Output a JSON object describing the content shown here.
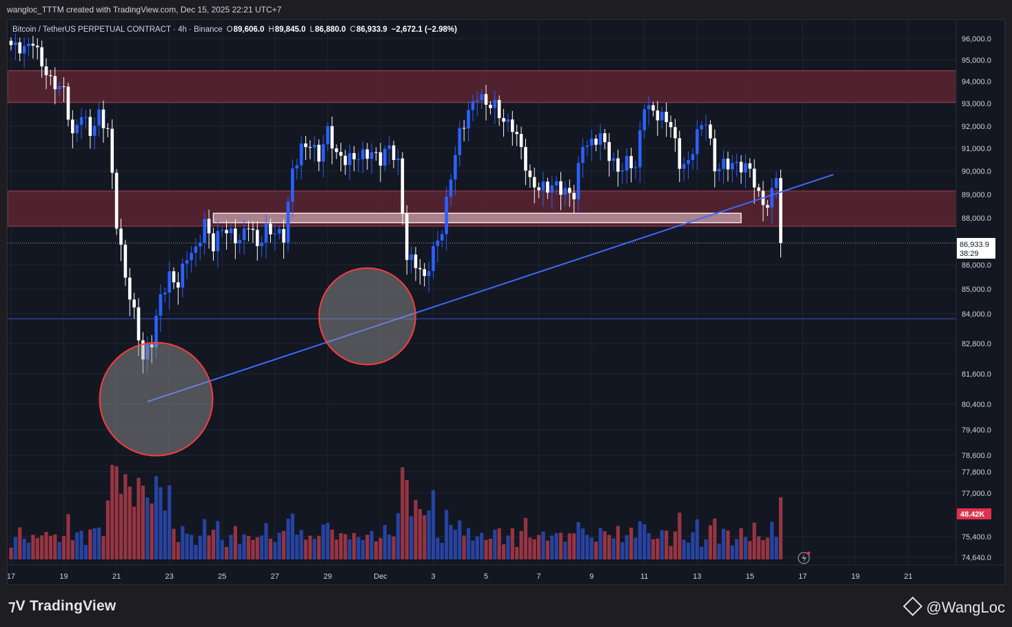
{
  "page": {
    "header_text": "wangloc_TTTM created with TradingView.com, Dec 15, 2025 22:21 UTC+7",
    "brand_logo": "TradingView",
    "watermark": "@WangLoc"
  },
  "legend": {
    "symbol": "Bitcoin / TetherUS PERPETUAL CONTRACT · 4h · Binance",
    "open_label": "O",
    "open": "89,606.0",
    "high_label": "H",
    "high": "89,845.0",
    "low_label": "L",
    "low": "86,880.0",
    "close_label": "C",
    "close": "86,933.9",
    "change": "−2,672.1 (−2.98%)"
  },
  "price_tag": {
    "price": "86,933.9",
    "countdown": "38:29"
  },
  "volume_tag": "48.42K",
  "colors": {
    "background": "#131722",
    "bull": "#2962ff",
    "bear": "#ffffff",
    "vol_up": "#2c4bb8",
    "vol_down": "#b03a48",
    "zone": "#5c2533",
    "zone_border": "#a8404f",
    "trendline": "#3d6bff",
    "circle_border": "#ff3b3b"
  },
  "chart_data": {
    "type": "candlestick",
    "timeframe": "4h",
    "y_ticks": [
      "96,000.0",
      "95,000.0",
      "94,000.0",
      "93,000.0",
      "92,000.0",
      "91,000.0",
      "90,000.0",
      "89,000.0",
      "88,000.0",
      "86,000.0",
      "85,000.0",
      "84,000.0",
      "82,800.0",
      "81,600.0",
      "80,400.0",
      "79,400.0",
      "78,600.0",
      "77,800.0",
      "77,000.0",
      "75,400.0",
      "74,640.0"
    ],
    "y_tick_values": [
      96000,
      95000,
      94000,
      93000,
      92000,
      91000,
      90000,
      89000,
      88000,
      86000,
      85000,
      84000,
      82800,
      81600,
      80400,
      79400,
      78600,
      77800,
      77000,
      75400,
      74640
    ],
    "x_ticks": [
      {
        "label": "17",
        "index": 0
      },
      {
        "label": "19",
        "index": 12
      },
      {
        "label": "21",
        "index": 24
      },
      {
        "label": "23",
        "index": 36
      },
      {
        "label": "25",
        "index": 48
      },
      {
        "label": "27",
        "index": 60
      },
      {
        "label": "29",
        "index": 72
      },
      {
        "label": "Dec",
        "index": 84
      },
      {
        "label": "3",
        "index": 96
      },
      {
        "label": "5",
        "index": 108
      },
      {
        "label": "7",
        "index": 120
      },
      {
        "label": "9",
        "index": 132
      },
      {
        "label": "11",
        "index": 144
      },
      {
        "label": "13",
        "index": 156
      },
      {
        "label": "15",
        "index": 168
      },
      {
        "label": "17",
        "index": 180
      },
      {
        "label": "19",
        "index": 192
      },
      {
        "label": "21",
        "index": 204
      }
    ],
    "anchors": [
      [
        0,
        95700
      ],
      [
        3,
        95500
      ],
      [
        5,
        95900
      ],
      [
        7,
        94800
      ],
      [
        9,
        94000
      ],
      [
        12,
        93600
      ],
      [
        14,
        91500
      ],
      [
        16,
        92600
      ],
      [
        18,
        91700
      ],
      [
        20,
        92500
      ],
      [
        22,
        91800
      ],
      [
        24,
        87800
      ],
      [
        26,
        85500
      ],
      [
        28,
        84000
      ],
      [
        30,
        82200
      ],
      [
        32,
        82900
      ],
      [
        34,
        84700
      ],
      [
        36,
        85500
      ],
      [
        38,
        85200
      ],
      [
        40,
        86400
      ],
      [
        42,
        86600
      ],
      [
        44,
        87800
      ],
      [
        46,
        86800
      ],
      [
        48,
        87600
      ],
      [
        50,
        87300
      ],
      [
        52,
        87000
      ],
      [
        54,
        87800
      ],
      [
        56,
        86800
      ],
      [
        58,
        87500
      ],
      [
        60,
        87400
      ],
      [
        62,
        87200
      ],
      [
        64,
        90000
      ],
      [
        66,
        91000
      ],
      [
        68,
        91200
      ],
      [
        70,
        90600
      ],
      [
        72,
        91800
      ],
      [
        74,
        90700
      ],
      [
        76,
        90500
      ],
      [
        78,
        90600
      ],
      [
        80,
        90700
      ],
      [
        82,
        90800
      ],
      [
        84,
        90500
      ],
      [
        86,
        91100
      ],
      [
        88,
        90300
      ],
      [
        90,
        86300
      ],
      [
        92,
        86100
      ],
      [
        94,
        85400
      ],
      [
        96,
        86600
      ],
      [
        98,
        87500
      ],
      [
        100,
        89800
      ],
      [
        102,
        91700
      ],
      [
        104,
        92600
      ],
      [
        106,
        93400
      ],
      [
        108,
        93000
      ],
      [
        110,
        92900
      ],
      [
        112,
        92200
      ],
      [
        114,
        92000
      ],
      [
        116,
        91000
      ],
      [
        118,
        89500
      ],
      [
        120,
        89300
      ],
      [
        122,
        89300
      ],
      [
        124,
        89400
      ],
      [
        126,
        89100
      ],
      [
        128,
        89000
      ],
      [
        130,
        91200
      ],
      [
        132,
        91200
      ],
      [
        134,
        91600
      ],
      [
        136,
        90700
      ],
      [
        138,
        90000
      ],
      [
        140,
        90400
      ],
      [
        142,
        90200
      ],
      [
        144,
        93000
      ],
      [
        146,
        92600
      ],
      [
        148,
        92400
      ],
      [
        150,
        92100
      ],
      [
        152,
        90300
      ],
      [
        154,
        90300
      ],
      [
        156,
        91700
      ],
      [
        158,
        92300
      ],
      [
        160,
        90100
      ],
      [
        162,
        90300
      ],
      [
        164,
        90300
      ],
      [
        166,
        90200
      ],
      [
        168,
        90100
      ],
      [
        170,
        88900
      ],
      [
        172,
        88500
      ],
      [
        174,
        89600
      ],
      [
        175,
        86934
      ]
    ],
    "resistance_zone": {
      "from": 93050,
      "to": 94500
    },
    "support_zone": {
      "from": 87650,
      "to": 89150
    },
    "range_box": {
      "from": 87800,
      "to": 88200,
      "start_index": 46,
      "end_index": 166
    },
    "horizontal_line": 83800,
    "current_price": 86933.9,
    "trendline": {
      "start": [
        31,
        80500
      ],
      "end": [
        187,
        89850
      ]
    },
    "highlight_circles": [
      {
        "center_index": 33,
        "center_price": 80600
      },
      {
        "center_index": 81,
        "center_price": 83900
      }
    ],
    "volume": {
      "last": "48.42K"
    }
  }
}
